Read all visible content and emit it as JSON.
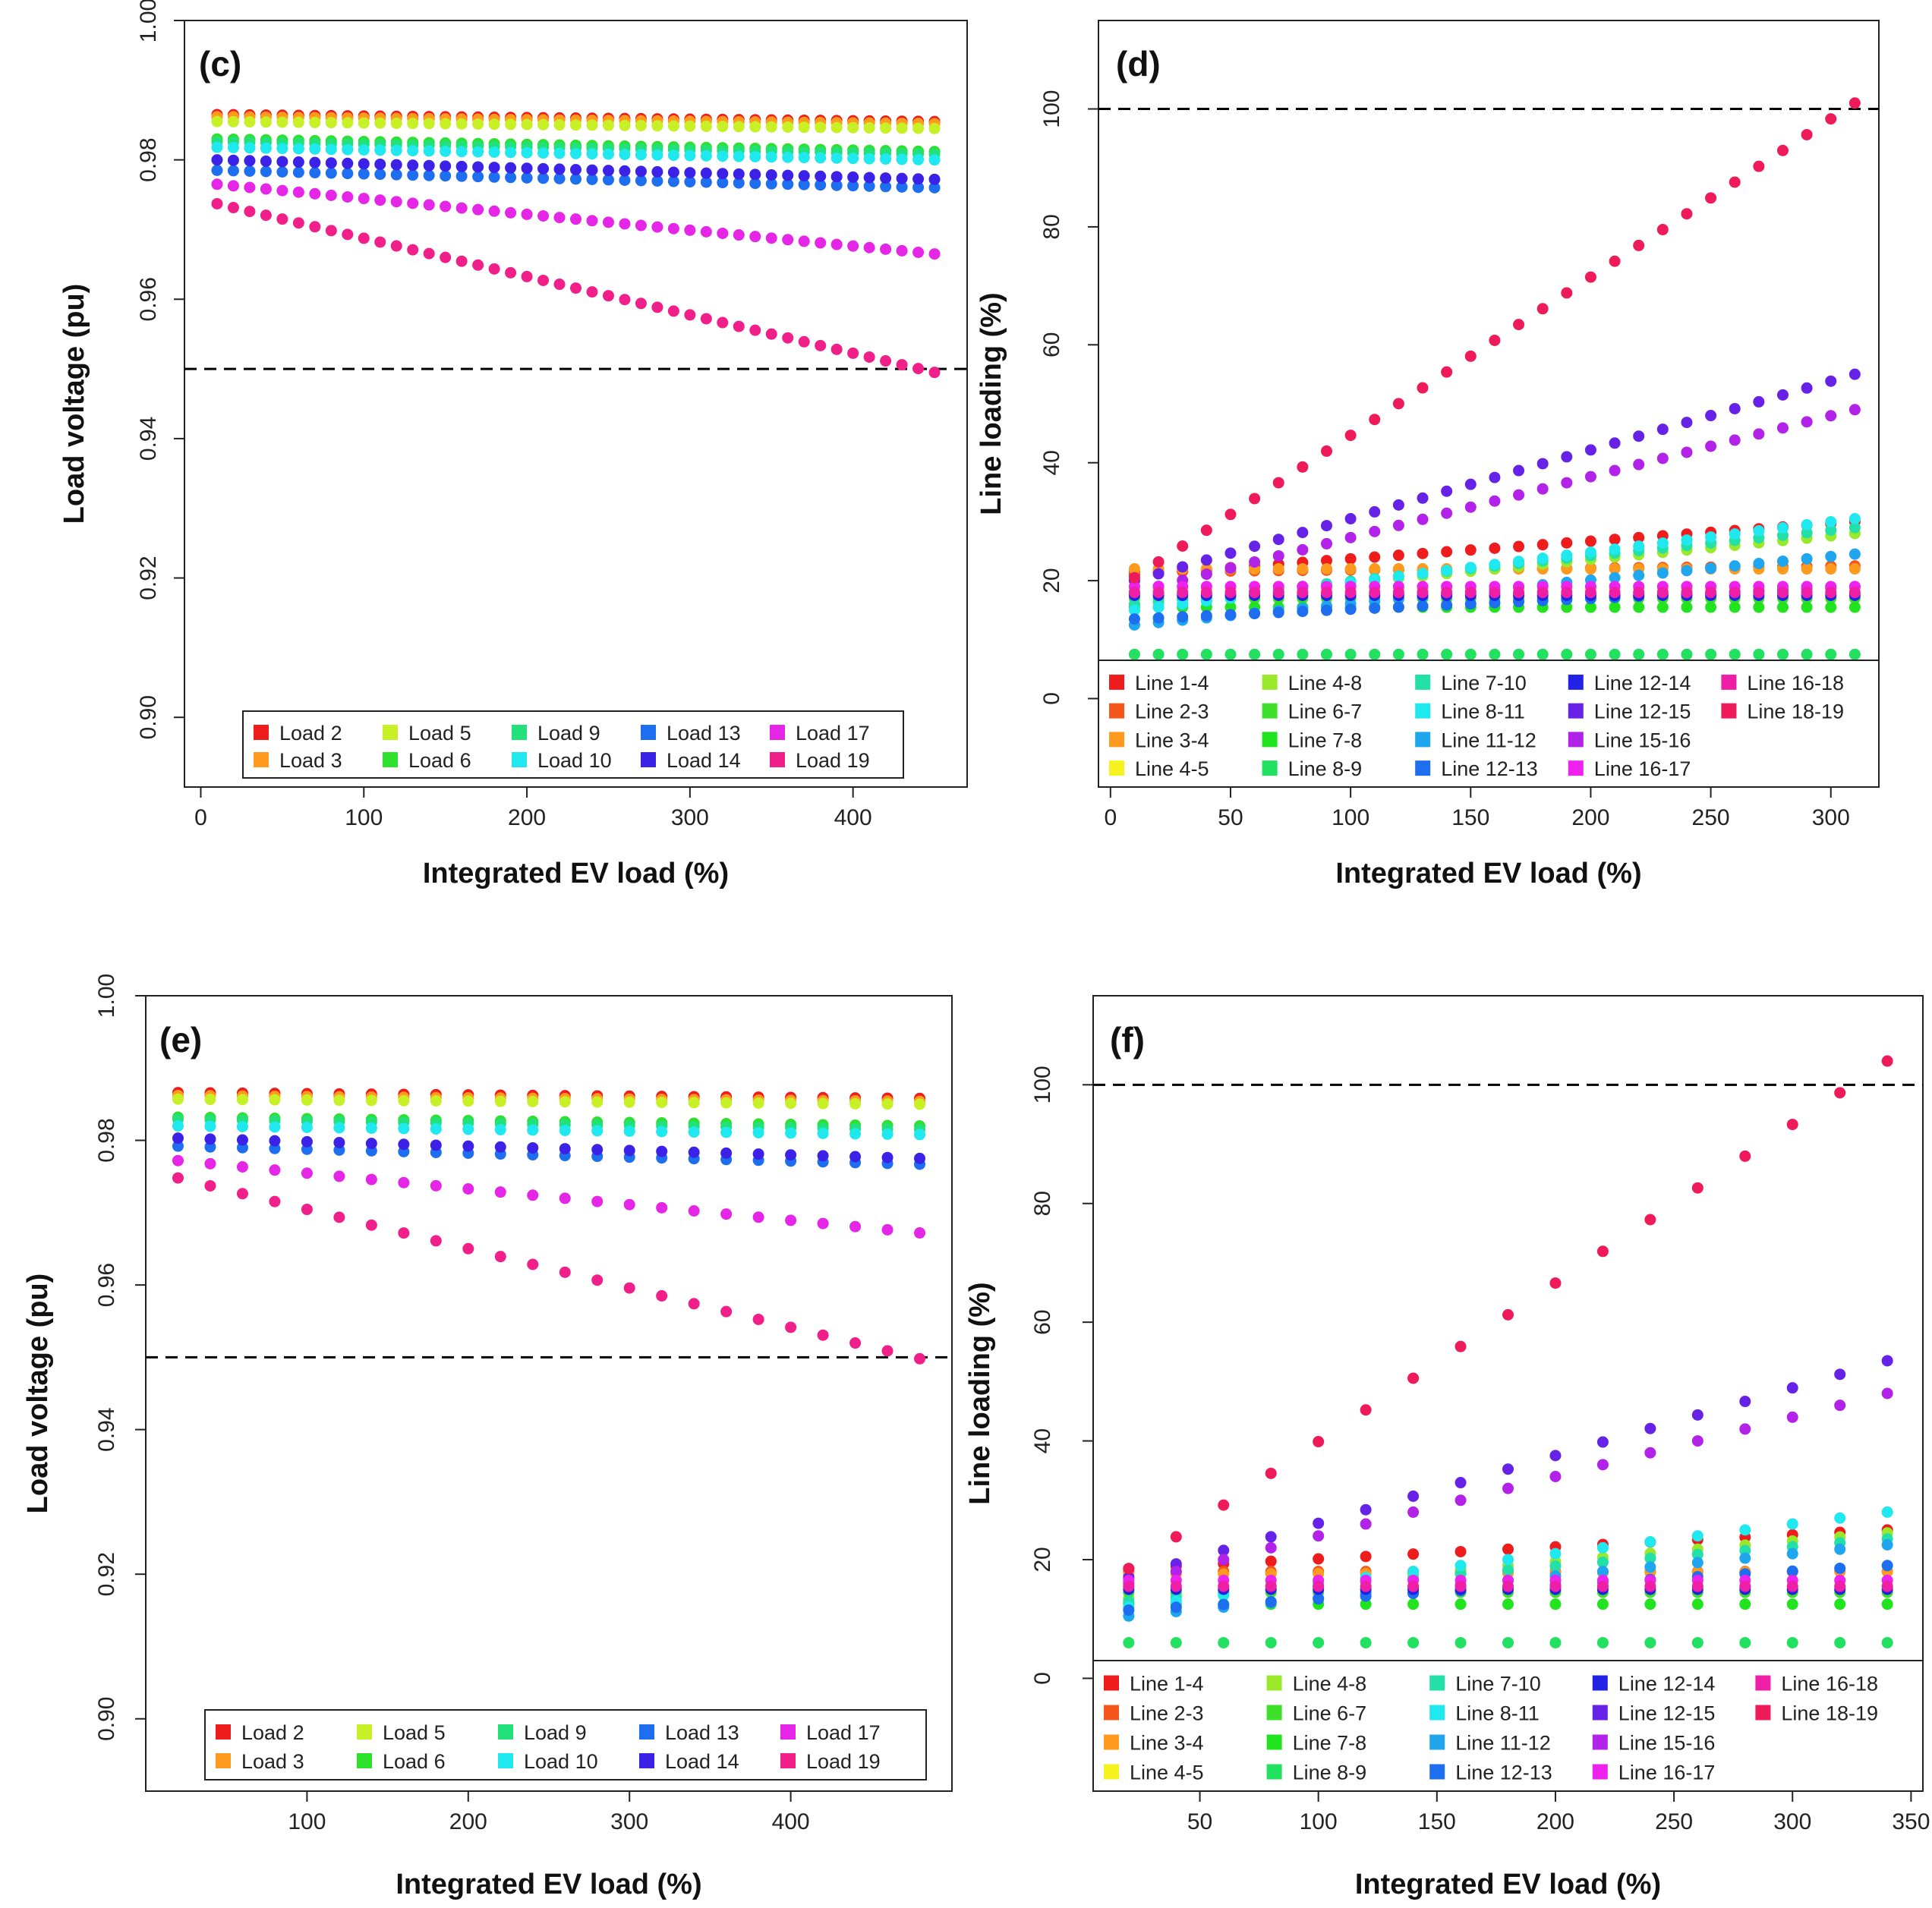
{
  "colors": {
    "Load 2": "#ee1c1c",
    "Load 3": "#ff9a1e",
    "Load 5": "#c8f026",
    "Load 6": "#2ee12e",
    "Load 9": "#22e07a",
    "Load 10": "#1fe8ee",
    "Load 13": "#1e6ef0",
    "Load 14": "#3c22e6",
    "Load 17": "#e526e6",
    "Load 19": "#f01f8a",
    "Line 1-4": "#ee1c1c",
    "Line 2-3": "#f5561c",
    "Line 3-4": "#ff9a1e",
    "Line 4-5": "#f6f220",
    "Line 4-8": "#9ae82a",
    "Line 6-7": "#3ee02c",
    "Line 7-8": "#22e41e",
    "Line 8-9": "#22e060",
    "Line 7-10": "#22e0a6",
    "Line 8-11": "#1fe8ee",
    "Line 11-12": "#1fa6ee",
    "Line 12-13": "#1e6ef0",
    "Line 12-14": "#2222e6",
    "Line 12-15": "#6622e6",
    "Line 15-16": "#b222e8",
    "Line 16-17": "#ee22ee",
    "Line 16-18": "#ee1ea6",
    "Line 18-19": "#ee1a5a",
    "threshold_line": "#000000"
  },
  "chart_data": [
    {
      "panel": "(c)",
      "type": "scatter",
      "xlabel": "Integrated EV load (%)",
      "ylabel": "Load voltage (pu)",
      "xlim": [
        -10,
        470
      ],
      "ylim": [
        0.89,
        1.0
      ],
      "xticks": [
        "0",
        "100",
        "200",
        "300",
        "400"
      ],
      "xtickvals": [
        0,
        100,
        200,
        300,
        400
      ],
      "yticks": [
        "0.90",
        "0.92",
        "0.94",
        "0.96",
        "0.98",
        "1.00"
      ],
      "ytickvals": [
        0.9,
        0.92,
        0.94,
        0.96,
        0.98,
        1.0
      ],
      "threshold": 0.95,
      "legend_ncol": 5,
      "legend_position": "bottom",
      "legend": [
        "Load 2",
        "Load 3",
        "Load 5",
        "Load 6",
        "Load 9",
        "Load 10",
        "Load 13",
        "Load 14",
        "Load 17",
        "Load 19"
      ],
      "x": {
        "start": 10,
        "step": 10,
        "end": 450
      },
      "series": [
        {
          "name": "Load 2",
          "start": 0.9865,
          "end": 0.9855
        },
        {
          "name": "Load 3",
          "start": 0.9862,
          "end": 0.9852
        },
        {
          "name": "Load 5",
          "start": 0.9855,
          "end": 0.9845
        },
        {
          "name": "Load 6",
          "start": 0.983,
          "end": 0.9812
        },
        {
          "name": "Load 9",
          "start": 0.9826,
          "end": 0.9808
        },
        {
          "name": "Load 10",
          "start": 0.9818,
          "end": 0.98
        },
        {
          "name": "Load 13",
          "start": 0.9785,
          "end": 0.976
        },
        {
          "name": "Load 14",
          "start": 0.98,
          "end": 0.9772
        },
        {
          "name": "Load 17",
          "start": 0.9765,
          "end": 0.9665
        },
        {
          "name": "Load 19",
          "start": 0.9737,
          "end": 0.9495
        }
      ]
    },
    {
      "panel": "(d)",
      "type": "scatter",
      "xlabel": "Integrated EV load (%)",
      "ylabel": "Line loading (%)",
      "xlim": [
        -5,
        320
      ],
      "ylim": [
        -15,
        115
      ],
      "xticks": [
        "0",
        "50",
        "100",
        "150",
        "200",
        "250",
        "300"
      ],
      "xtickvals": [
        0,
        50,
        100,
        150,
        200,
        250,
        300
      ],
      "yticks": [
        "0",
        "20",
        "40",
        "60",
        "80",
        "100"
      ],
      "ytickvals": [
        0,
        20,
        40,
        60,
        80,
        100
      ],
      "threshold": 100,
      "legend_ncol": 5,
      "legend_position": "bottom",
      "legend": [
        "Line 1-4",
        "Line 2-3",
        "Line 3-4",
        "Line 4-5",
        "Line 4-8",
        "Line 6-7",
        "Line 7-8",
        "Line 8-9",
        "Line 7-10",
        "Line 8-11",
        "Line 11-12",
        "Line 12-13",
        "Line 12-14",
        "Line 12-15",
        "Line 15-16",
        "Line 16-17",
        "Line 16-18",
        "Line 18-19"
      ],
      "x": {
        "start": 10,
        "step": 10,
        "end": 310
      },
      "series": [
        {
          "name": "Line 1-4",
          "start": 21.0,
          "end": 30.0
        },
        {
          "name": "Line 2-3",
          "start": 21.5,
          "end": 22.5
        },
        {
          "name": "Line 3-4",
          "start": 22.0,
          "end": 22.0
        },
        {
          "name": "Line 4-5",
          "start": 18.5,
          "end": 18.5
        },
        {
          "name": "Line 4-8",
          "start": 16.0,
          "end": 28.0
        },
        {
          "name": "Line 6-7",
          "start": 17.0,
          "end": 17.0
        },
        {
          "name": "Line 7-8",
          "start": 15.5,
          "end": 15.5
        },
        {
          "name": "Line 8-9",
          "start": 7.5,
          "end": 7.5
        },
        {
          "name": "Line 7-10",
          "start": 16.0,
          "end": 29.0
        },
        {
          "name": "Line 8-11",
          "start": 15.0,
          "end": 30.5
        },
        {
          "name": "Line 11-12",
          "start": 12.5,
          "end": 24.5
        },
        {
          "name": "Line 12-13",
          "start": 13.5,
          "end": 19.0
        },
        {
          "name": "Line 12-14",
          "start": 17.5,
          "end": 17.5
        },
        {
          "name": "Line 12-15",
          "start": 20.0,
          "end": 55.0
        },
        {
          "name": "Line 15-16",
          "start": 18.0,
          "end": 49.0
        },
        {
          "name": "Line 16-17",
          "start": 19.0,
          "end": 19.0
        },
        {
          "name": "Line 16-18",
          "start": 18.0,
          "end": 18.0
        },
        {
          "name": "Line 18-19",
          "start": 20.5,
          "end": 101.0
        }
      ]
    },
    {
      "panel": "(e)",
      "type": "scatter",
      "xlabel": "Integrated EV load (%)",
      "ylabel": "Load voltage (pu)",
      "xlim": [
        0,
        500
      ],
      "ylim": [
        0.89,
        1.0
      ],
      "xticks": [
        "100",
        "200",
        "300",
        "400"
      ],
      "xtickvals": [
        100,
        200,
        300,
        400
      ],
      "yticks": [
        "0.90",
        "0.92",
        "0.94",
        "0.96",
        "0.98",
        "1.00"
      ],
      "ytickvals": [
        0.9,
        0.92,
        0.94,
        0.96,
        0.98,
        1.0
      ],
      "threshold": 0.95,
      "legend_ncol": 5,
      "legend_position": "bottom",
      "legend": [
        "Load 2",
        "Load 3",
        "Load 5",
        "Load 6",
        "Load 9",
        "Load 10",
        "Load 13",
        "Load 14",
        "Load 17",
        "Load 19"
      ],
      "x": {
        "start": 20,
        "step": 20,
        "end": 480
      },
      "series": [
        {
          "name": "Load 2",
          "start": 0.9866,
          "end": 0.9858
        },
        {
          "name": "Load 3",
          "start": 0.9862,
          "end": 0.9854
        },
        {
          "name": "Load 5",
          "start": 0.9857,
          "end": 0.985
        },
        {
          "name": "Load 6",
          "start": 0.9832,
          "end": 0.982
        },
        {
          "name": "Load 9",
          "start": 0.9829,
          "end": 0.9815
        },
        {
          "name": "Load 10",
          "start": 0.982,
          "end": 0.9808
        },
        {
          "name": "Load 13",
          "start": 0.9792,
          "end": 0.9767
        },
        {
          "name": "Load 14",
          "start": 0.9803,
          "end": 0.9775
        },
        {
          "name": "Load 17",
          "start": 0.9772,
          "end": 0.9672
        },
        {
          "name": "Load 19",
          "start": 0.9748,
          "end": 0.9498
        }
      ]
    },
    {
      "panel": "(f)",
      "type": "scatter",
      "xlabel": "Integrated EV load (%)",
      "ylabel": "Line loading (%)",
      "xlim": [
        5,
        355
      ],
      "ylim": [
        -19,
        115
      ],
      "xticks": [
        "50",
        "100",
        "150",
        "200",
        "250",
        "300",
        "350"
      ],
      "xtickvals": [
        50,
        100,
        150,
        200,
        250,
        300,
        350
      ],
      "yticks": [
        "0",
        "20",
        "40",
        "60",
        "80",
        "100"
      ],
      "ytickvals": [
        0,
        20,
        40,
        60,
        80,
        100
      ],
      "threshold": 100,
      "legend_ncol": 5,
      "legend_position": "bottom",
      "legend": [
        "Line 1-4",
        "Line 2-3",
        "Line 3-4",
        "Line 4-5",
        "Line 4-8",
        "Line 6-7",
        "Line 7-8",
        "Line 8-9",
        "Line 7-10",
        "Line 8-11",
        "Line 11-12",
        "Line 12-13",
        "Line 12-14",
        "Line 12-15",
        "Line 15-16",
        "Line 16-17",
        "Line 16-18",
        "Line 18-19"
      ],
      "x": {
        "start": 20,
        "step": 20,
        "end": 340
      },
      "series": [
        {
          "name": "Line 1-4",
          "start": 18.5,
          "end": 25.0
        },
        {
          "name": "Line 2-3",
          "start": 18.0,
          "end": 18.0
        },
        {
          "name": "Line 3-4",
          "start": 17.5,
          "end": 18.0
        },
        {
          "name": "Line 4-5",
          "start": 15.5,
          "end": 15.5
        },
        {
          "name": "Line 4-8",
          "start": 13.5,
          "end": 24.5
        },
        {
          "name": "Line 6-7",
          "start": 14.5,
          "end": 14.5
        },
        {
          "name": "Line 7-8",
          "start": 12.5,
          "end": 12.5
        },
        {
          "name": "Line 8-9",
          "start": 6.0,
          "end": 6.0
        },
        {
          "name": "Line 7-10",
          "start": 13.0,
          "end": 23.5
        },
        {
          "name": "Line 8-11",
          "start": 12.0,
          "end": 28.0
        },
        {
          "name": "Line 11-12",
          "start": 10.5,
          "end": 22.5
        },
        {
          "name": "Line 12-13",
          "start": 11.5,
          "end": 19.0
        },
        {
          "name": "Line 12-14",
          "start": 15.0,
          "end": 15.0
        },
        {
          "name": "Line 12-15",
          "start": 17.0,
          "end": 53.5
        },
        {
          "name": "Line 15-16",
          "start": 16.0,
          "end": 48.0
        },
        {
          "name": "Line 16-17",
          "start": 16.5,
          "end": 16.5
        },
        {
          "name": "Line 16-18",
          "start": 15.5,
          "end": 15.5
        },
        {
          "name": "Line 18-19",
          "start": 18.5,
          "end": 104.0
        }
      ]
    }
  ]
}
